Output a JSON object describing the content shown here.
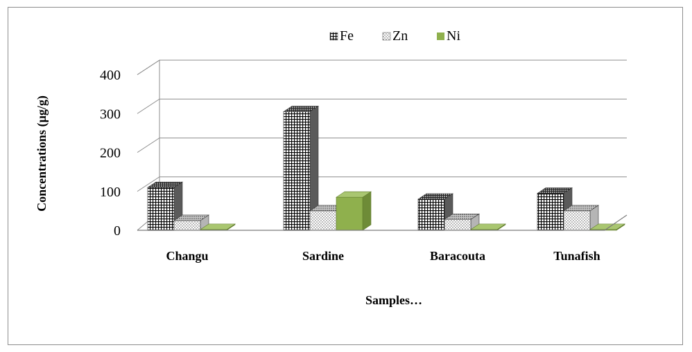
{
  "chart_data": {
    "type": "bar",
    "style": "3d-clustered-column",
    "categories": [
      "Changu",
      "Sardine",
      "Baracouta",
      "Tunafish"
    ],
    "series": [
      {
        "name": "Fe",
        "values": [
          110,
          305,
          80,
          95
        ],
        "color": "#000000",
        "fill": "grid-pattern"
      },
      {
        "name": "Zn",
        "values": [
          25,
          50,
          28,
          50
        ],
        "color": "#6a6a6a",
        "fill": "dotted-pattern"
      },
      {
        "name": "Ni",
        "values": [
          2,
          85,
          2,
          2
        ],
        "color": "#8fb04d",
        "fill": "solid"
      }
    ],
    "ylabel": "Concentrations (µg/g)",
    "xlabel": "Samples…",
    "ylim": [
      0,
      400
    ],
    "yticks": [
      0,
      100,
      200,
      300,
      400
    ],
    "grid": true,
    "legend_position": "top"
  }
}
